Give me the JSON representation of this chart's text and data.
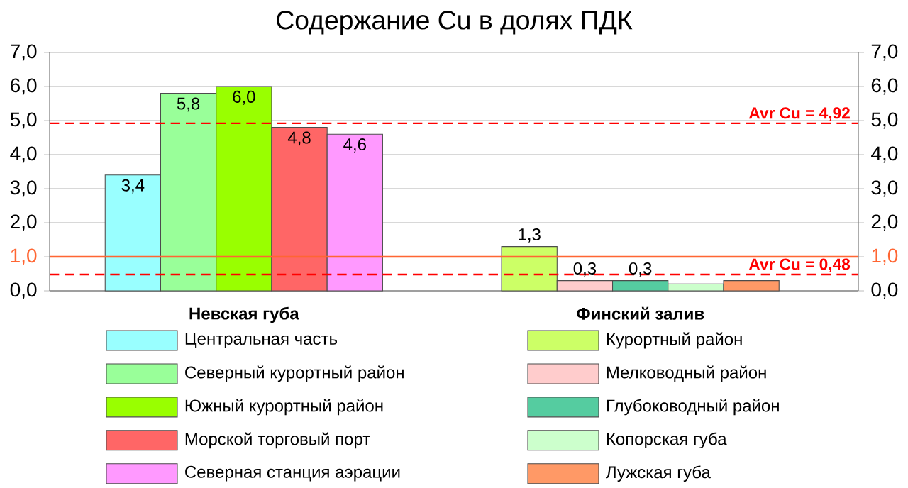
{
  "chart_data": {
    "type": "bar",
    "title": "Содержание Cu в долях ПДК",
    "categories": [
      "Невская губа",
      "Финский залив"
    ],
    "series": [
      {
        "name": "Центральная часть",
        "color": "#99ffff",
        "values": [
          3.4,
          null
        ],
        "value_labels": [
          "3,4",
          null
        ]
      },
      {
        "name": "Северный курортный район",
        "color": "#99ff99",
        "values": [
          5.8,
          null
        ],
        "value_labels": [
          "5,8",
          null
        ]
      },
      {
        "name": "Южный курортный район",
        "color": "#99ff00",
        "values": [
          6.0,
          null
        ],
        "value_labels": [
          "6,0",
          null
        ]
      },
      {
        "name": "Морской торговый порт",
        "color": "#ff6666",
        "values": [
          4.8,
          null
        ],
        "value_labels": [
          "4,8",
          null
        ]
      },
      {
        "name": "Северная станция аэрации",
        "color": "#ff99ff",
        "values": [
          4.6,
          null
        ],
        "value_labels": [
          "4,6",
          null
        ]
      },
      {
        "name": "Курортный район",
        "color": "#ccff66",
        "values": [
          null,
          1.3
        ],
        "value_labels": [
          null,
          "1,3"
        ]
      },
      {
        "name": "Мелководный район",
        "color": "#ffcccc",
        "values": [
          null,
          0.3
        ],
        "value_labels": [
          null,
          "0,3"
        ]
      },
      {
        "name": "Глубоководный район",
        "color": "#55cca0",
        "values": [
          null,
          0.3
        ],
        "value_labels": [
          null,
          "0,3"
        ]
      },
      {
        "name": "Копорская губа",
        "color": "#ccffcc",
        "values": [
          null,
          0.2
        ],
        "value_labels": [
          null,
          null
        ]
      },
      {
        "name": "Лужская губа",
        "color": "#ff9966",
        "values": [
          null,
          0.3
        ],
        "value_labels": [
          null,
          null
        ]
      }
    ],
    "ylim": [
      0,
      7
    ],
    "yticks": [
      {
        "value": 0,
        "label": "0,0"
      },
      {
        "value": 1,
        "label": "1,0"
      },
      {
        "value": 2,
        "label": "2,0"
      },
      {
        "value": 3,
        "label": "3,0"
      },
      {
        "value": 4,
        "label": "4,0"
      },
      {
        "value": 5,
        "label": "5,0"
      },
      {
        "value": 6,
        "label": "6,0"
      },
      {
        "value": 7,
        "label": "7,0"
      }
    ],
    "y2lim": [
      0,
      7
    ],
    "y2ticks": [
      {
        "value": 0,
        "label": "0,0"
      },
      {
        "value": 1,
        "label": "1,0"
      },
      {
        "value": 2,
        "label": "2,0"
      },
      {
        "value": 3,
        "label": "3,0"
      },
      {
        "value": 4,
        "label": "4,0"
      },
      {
        "value": 5,
        "label": "5,0"
      },
      {
        "value": 6,
        "label": "6,0"
      },
      {
        "value": 7,
        "label": "7,0"
      }
    ],
    "grid": "y",
    "legend": "bottom",
    "ref_lines": [
      {
        "axis": "y",
        "value": 1,
        "color": "#ff6633",
        "line_style": "solid"
      },
      {
        "axis": "y",
        "value": 4.92,
        "label": "Avr Cu = 4,92",
        "color": "#ff0000",
        "line_style": "dashed"
      },
      {
        "axis": "y",
        "value": 0.48,
        "label": "Avr Cu = 0,48",
        "color": "#ff0000",
        "line_style": "dashed"
      }
    ]
  }
}
